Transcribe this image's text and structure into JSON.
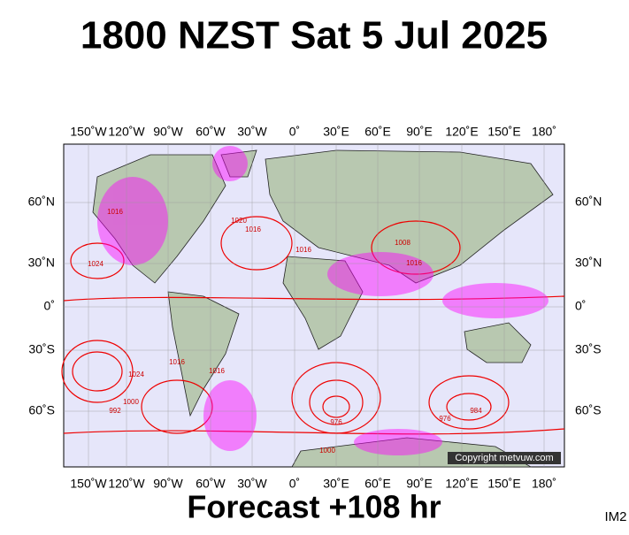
{
  "header": {
    "title": "1800 NZST Sat 5 Jul 2025"
  },
  "map": {
    "lon_labels": [
      "150˚W",
      "120˚W",
      "90˚W",
      "60˚W",
      "30˚W",
      "0˚",
      "30˚E",
      "60˚E",
      "90˚E",
      "120˚E",
      "150˚E",
      "180˚"
    ],
    "lat_labels": [
      "60˚N",
      "30˚N",
      "0˚",
      "30˚S",
      "60˚S"
    ],
    "isobar_labels": [
      "1024",
      "1016",
      "1020",
      "1016",
      "1008",
      "1016",
      "1024",
      "1016",
      "992",
      "1000",
      "976",
      "984",
      "976",
      "1000",
      "1016",
      "1016"
    ],
    "copyright": "Copyright metvuw.com"
  },
  "footer": {
    "forecast": "Forecast +108 hr",
    "code": "IM2"
  }
}
